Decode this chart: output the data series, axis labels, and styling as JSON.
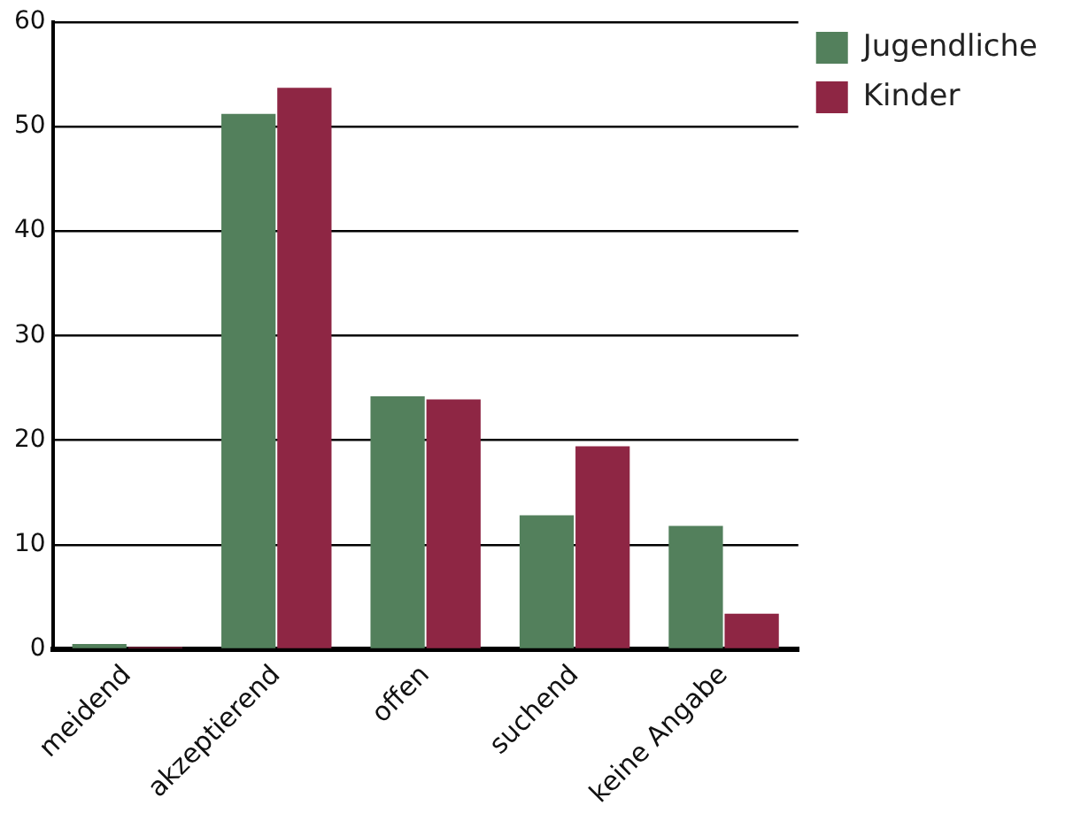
{
  "chart_data": {
    "type": "bar",
    "categories": [
      "meidend",
      "akzeptierend",
      "offen",
      "suchend",
      "keine Angabe"
    ],
    "series": [
      {
        "name": "Jugendliche",
        "color": "#53805c",
        "values": [
          0.5,
          51.2,
          24.2,
          12.8,
          11.8
        ]
      },
      {
        "name": "Kinder",
        "color": "#8e2644",
        "values": [
          0.2,
          53.7,
          23.9,
          19.4,
          3.4
        ]
      }
    ],
    "ylim": [
      0,
      60
    ],
    "yticks": [
      0,
      10,
      20,
      30,
      40,
      50,
      60
    ],
    "grid": "y",
    "legend": "top right"
  }
}
